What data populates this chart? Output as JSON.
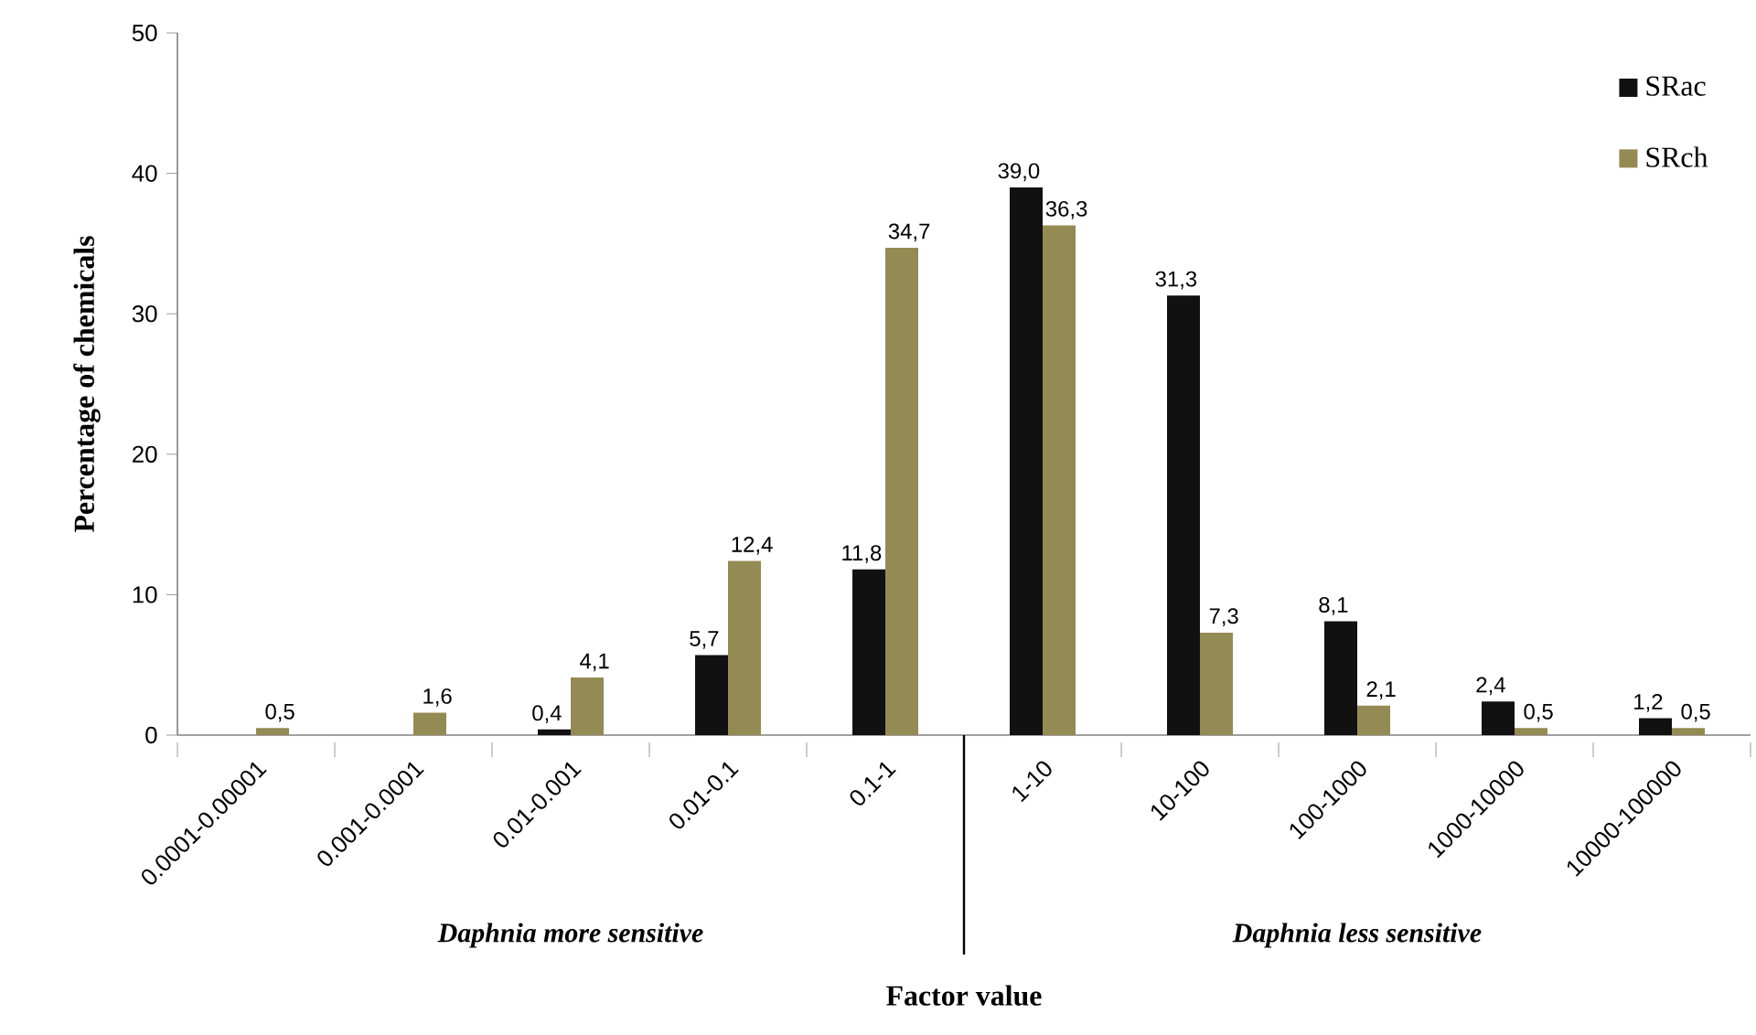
{
  "chart_data": {
    "type": "bar",
    "xlabel": "Factor value",
    "ylabel": "Percentage of chemicals",
    "categories": [
      "0.0001-0.00001",
      "0.001-0.0001",
      "0.01-0.001",
      "0.01-0.1",
      "0.1-1",
      "1-10",
      "10-100",
      "100-1000",
      "1000-10000",
      "10000-100000"
    ],
    "series": [
      {
        "name": "SRac",
        "color": "#111111",
        "values": [
          null,
          null,
          0.4,
          5.7,
          11.8,
          39.0,
          31.3,
          8.1,
          2.4,
          1.2
        ],
        "value_labels": [
          null,
          null,
          "0,4",
          "5,7",
          "11,8",
          "39,0",
          "31,3",
          "8,1",
          "2,4",
          "1,2"
        ]
      },
      {
        "name": "SRch",
        "color": "#948a54",
        "values": [
          0.5,
          1.6,
          4.1,
          12.4,
          34.7,
          36.3,
          7.3,
          2.1,
          0.5,
          0.5
        ],
        "value_labels": [
          "0,5",
          "1,6",
          "4,1",
          "12,4",
          "34,7",
          "36,3",
          "7,3",
          "2,1",
          "0,5",
          "0,5"
        ]
      }
    ],
    "ylim": [
      0,
      50
    ],
    "yticks": [
      0,
      10,
      20,
      30,
      40,
      50
    ],
    "grid": false,
    "legend": "top right",
    "annotations": [
      "Daphnia more sensitive",
      "Daphnia less sensitive"
    ]
  }
}
